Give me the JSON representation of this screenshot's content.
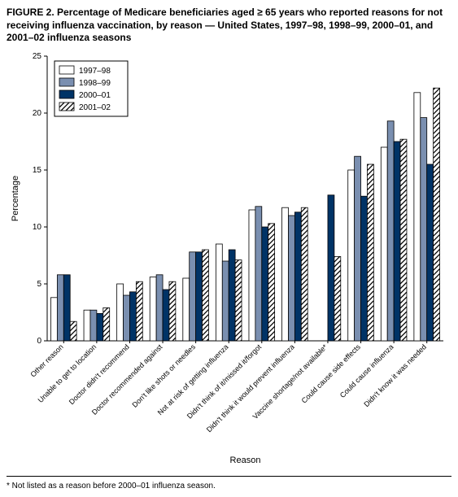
{
  "title": "FIGURE 2. Percentage of Medicare beneficiaries aged ≥ 65 years who reported reasons for not receiving influenza vaccination, by reason — United States, 1997–98, 1998–99, 2000–01, and 2001–02 influenza seasons",
  "footnote": "* Not listed as a reason before 2000–01 influenza season.",
  "chart": {
    "type": "bar",
    "ylabel": "Percentage",
    "xlabel": "Reason",
    "ylim": [
      0,
      25
    ],
    "ytick_step": 5,
    "background_color": "#ffffff",
    "axis_color": "#000000",
    "series": [
      {
        "label": "1997–98",
        "fill": "#ffffff",
        "stroke": "#000000",
        "pattern": "none"
      },
      {
        "label": "1998–99",
        "fill": "#7a8fb0",
        "stroke": "#000000",
        "pattern": "none"
      },
      {
        "label": "2000–01",
        "fill": "#003366",
        "stroke": "#000000",
        "pattern": "none"
      },
      {
        "label": "2001–02",
        "fill": "#ffffff",
        "stroke": "#000000",
        "pattern": "diag"
      }
    ],
    "categories": [
      "Other reason",
      "Unable to get to location",
      "Doctor didn't recommend",
      "Doctor recommended against",
      "Don't like shots or needles",
      "Not at risk of getting influenza",
      "Didn't think of it/missed it/forgot",
      "Didn't think it would prevent influenza",
      "Vaccine shortage/not available*",
      "Could cause side effects",
      "Could cause influenza",
      "Didn't know it was needed"
    ],
    "values": [
      [
        3.8,
        5.8,
        5.8,
        1.7
      ],
      [
        2.7,
        2.7,
        2.4,
        2.9
      ],
      [
        5.0,
        4.0,
        4.3,
        5.2
      ],
      [
        5.6,
        5.8,
        4.5,
        5.2
      ],
      [
        5.5,
        7.8,
        7.8,
        8.0
      ],
      [
        8.5,
        7.0,
        8.0,
        7.1
      ],
      [
        11.5,
        11.8,
        10.0,
        10.3
      ],
      [
        11.7,
        11.0,
        11.3,
        11.7
      ],
      [
        null,
        null,
        12.8,
        7.4
      ],
      [
        15.0,
        16.2,
        12.7,
        15.5
      ],
      [
        17.0,
        19.3,
        17.5,
        17.7
      ],
      [
        21.8,
        19.6,
        15.5,
        22.2
      ]
    ],
    "bar_group_width": 0.78,
    "label_fontsize": 11,
    "tick_fontsize": 10
  }
}
